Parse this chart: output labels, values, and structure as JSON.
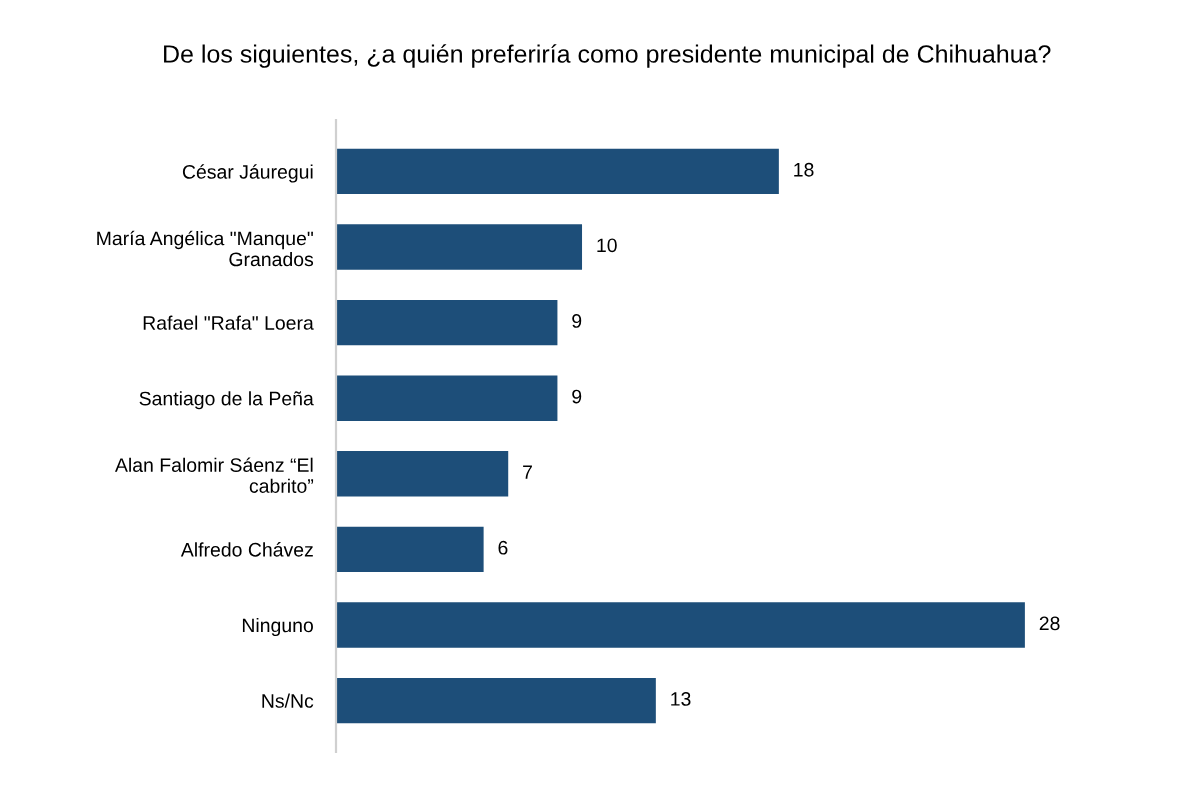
{
  "chart_data": {
    "type": "bar",
    "orientation": "horizontal",
    "title": "De los siguientes, ¿a quién preferiría como presidente municipal de Chihuahua?",
    "categories": [
      "César Jáuregui",
      "María Angélica \"Manque\"\nGranados",
      "Rafael \"Rafa\" Loera",
      "Santiago de la Peña",
      "Alan Falomir Sáenz “El\ncabrito”",
      "Alfredo Chávez",
      "Ninguno",
      "Ns/Nc"
    ],
    "values": [
      18,
      10,
      9,
      9,
      7,
      6,
      28,
      13
    ],
    "color": "#1d4e79",
    "data_labels": true,
    "grid": false,
    "legend": false
  }
}
